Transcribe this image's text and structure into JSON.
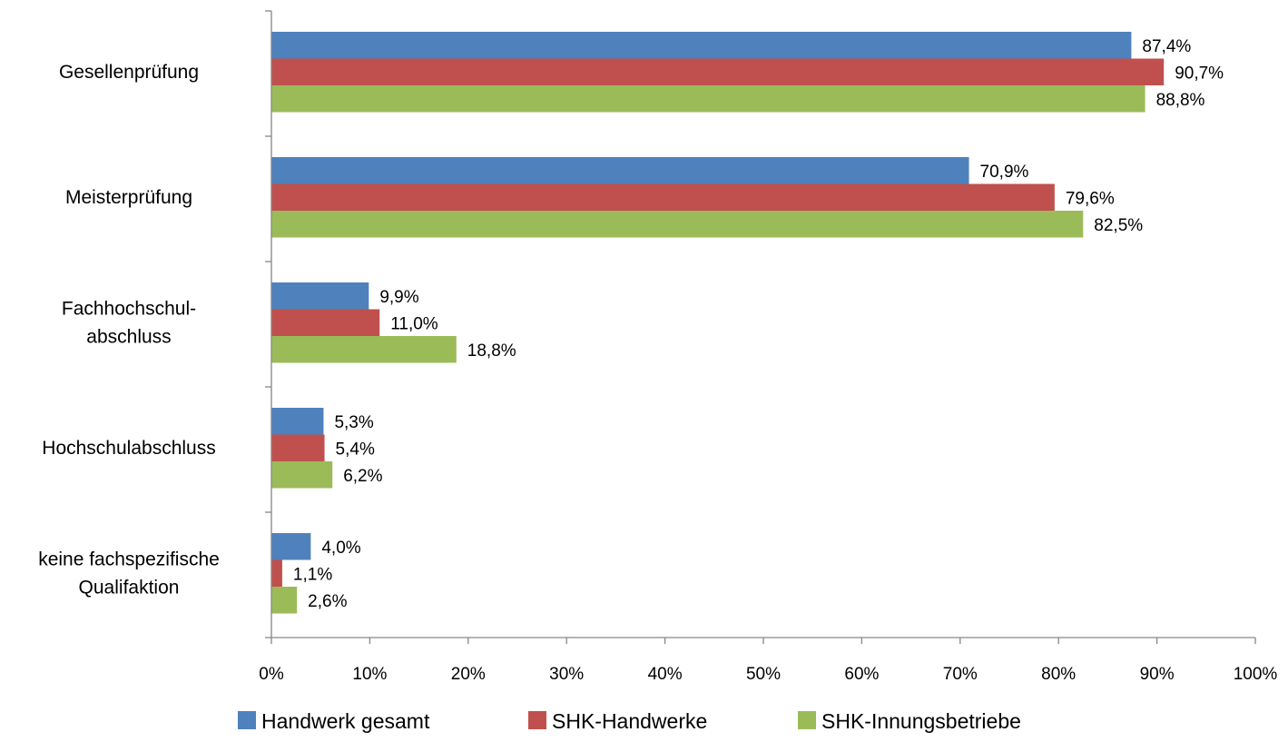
{
  "chart_data": {
    "type": "bar",
    "orientation": "horizontal",
    "categories": [
      [
        "Gesellenprüfung"
      ],
      [
        "Meisterprüfung"
      ],
      [
        "Fachhochschul-",
        "abschluss"
      ],
      [
        "Hochschulabschluss"
      ],
      [
        "keine fachspezifische",
        "Qualifaktion"
      ]
    ],
    "series": [
      {
        "name": "Handwerk gesamt",
        "color": "#4F81BD",
        "values": [
          87.4,
          70.9,
          9.9,
          5.3,
          4.0
        ],
        "labels": [
          "87,4%",
          "70,9%",
          "9,9%",
          "5,3%",
          "4,0%"
        ]
      },
      {
        "name": "SHK-Handwerke",
        "color": "#C0504D",
        "values": [
          90.7,
          79.6,
          11.0,
          5.4,
          1.1
        ],
        "labels": [
          "90,7%",
          "79,6%",
          "11,0%",
          "5,4%",
          "1,1%"
        ]
      },
      {
        "name": "SHK-Innungsbetriebe",
        "color": "#9BBB59",
        "values": [
          88.8,
          82.5,
          18.8,
          6.2,
          2.6
        ],
        "labels": [
          "88,8%",
          "82,5%",
          "18,8%",
          "6,2%",
          "2,6%"
        ]
      }
    ],
    "x_ticks": [
      "0%",
      "10%",
      "20%",
      "30%",
      "40%",
      "50%",
      "60%",
      "70%",
      "80%",
      "90%",
      "100%"
    ],
    "xlim": [
      0,
      100
    ],
    "axis_color": "#868686",
    "grid": false,
    "legend_position": "bottom"
  }
}
